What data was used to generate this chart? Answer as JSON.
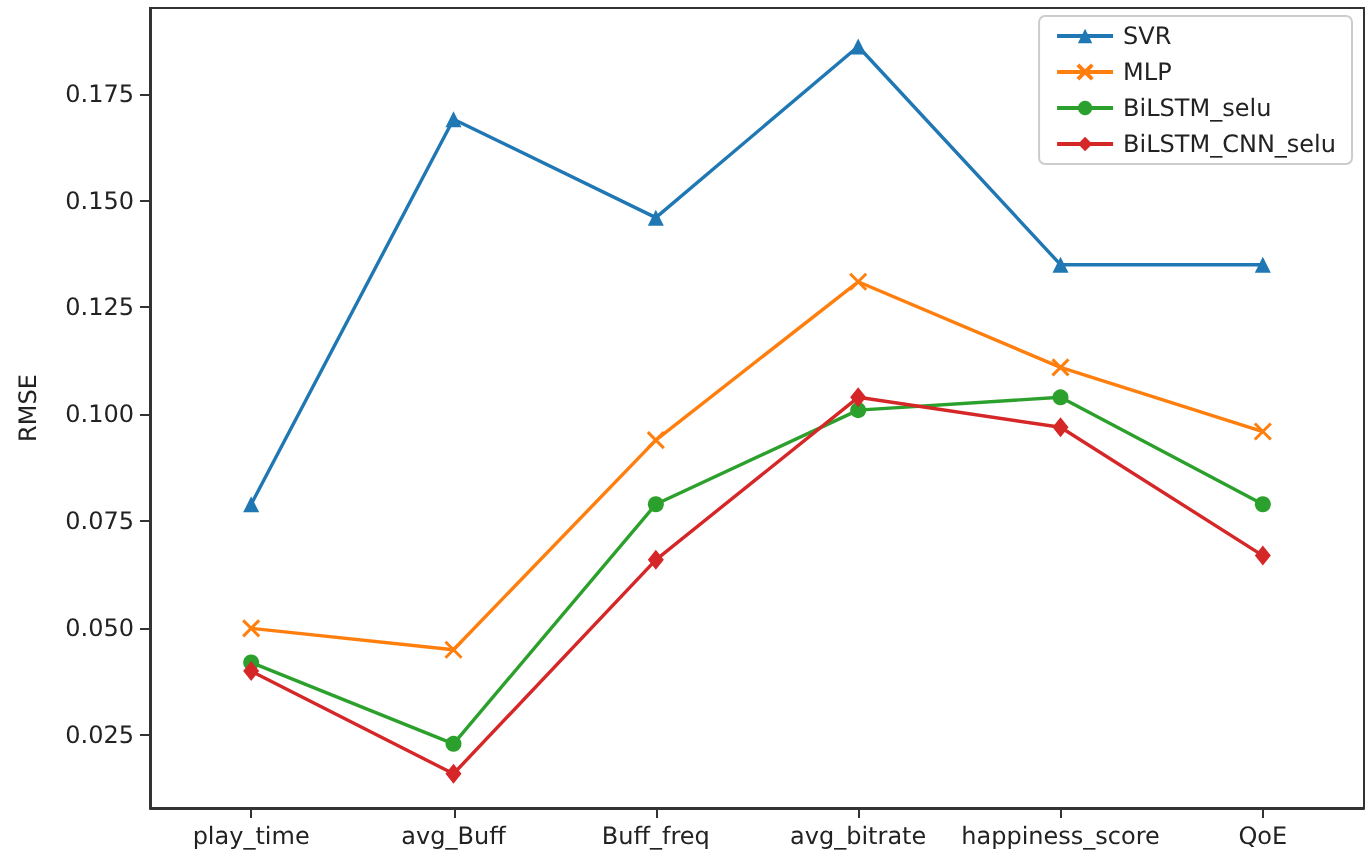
{
  "chart_data": {
    "type": "line",
    "ylabel": "RMSE",
    "categories": [
      "play_time",
      "avg_Buff",
      "Buff_freq",
      "avg_bitrate",
      "happiness_score",
      "QoE"
    ],
    "series": [
      {
        "name": "SVR",
        "color": "#1f77b4",
        "marker": "triangle",
        "values": [
          0.079,
          0.169,
          0.146,
          0.186,
          0.135,
          0.135
        ]
      },
      {
        "name": "MLP",
        "color": "#ff7f0e",
        "marker": "cross",
        "values": [
          0.05,
          0.045,
          0.094,
          0.131,
          0.111,
          0.096
        ]
      },
      {
        "name": "BiLSTM_selu",
        "color": "#2ca02c",
        "marker": "circle",
        "values": [
          0.042,
          0.023,
          0.079,
          0.101,
          0.104,
          0.079
        ]
      },
      {
        "name": "BiLSTM_CNN_selu",
        "color": "#d62728",
        "marker": "diamond",
        "values": [
          0.04,
          0.016,
          0.066,
          0.104,
          0.097,
          0.067
        ]
      }
    ],
    "ylim": [
      0.008,
      0.195
    ],
    "yticks": [
      {
        "value": 0.025,
        "label": "0.025"
      },
      {
        "value": 0.05,
        "label": "0.050"
      },
      {
        "value": 0.075,
        "label": "0.075"
      },
      {
        "value": 0.1,
        "label": "0.100"
      },
      {
        "value": 0.125,
        "label": "0.125"
      },
      {
        "value": 0.15,
        "label": "0.150"
      },
      {
        "value": 0.175,
        "label": "0.175"
      }
    ],
    "grid": false,
    "legend": "top right"
  }
}
